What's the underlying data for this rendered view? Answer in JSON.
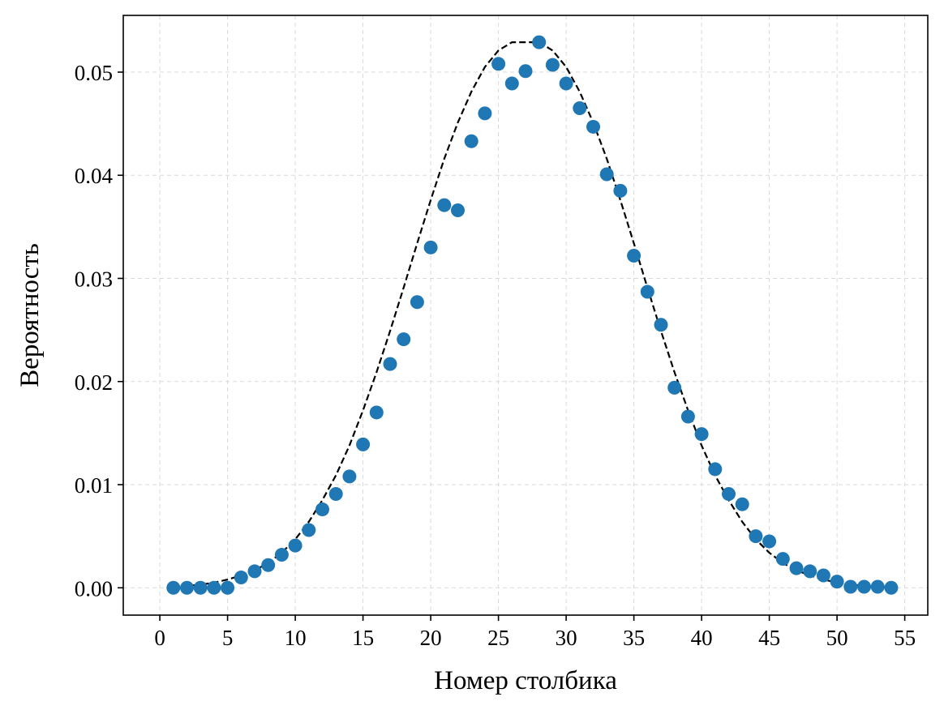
{
  "chart_data": {
    "type": "scatter",
    "title": "",
    "xlabel": "Номер столбика",
    "ylabel": "Вероятность",
    "xlim": [
      -2.7,
      56.7
    ],
    "ylim": [
      -0.00265,
      0.0555
    ],
    "xticks": [
      0,
      5,
      10,
      15,
      20,
      25,
      30,
      35,
      40,
      45,
      50,
      55
    ],
    "xtick_labels": [
      "0",
      "5",
      "10",
      "15",
      "20",
      "25",
      "30",
      "35",
      "40",
      "45",
      "50",
      "55"
    ],
    "yticks": [
      0.0,
      0.01,
      0.02,
      0.03,
      0.04,
      0.05
    ],
    "ytick_labels": [
      "0.00",
      "0.01",
      "0.02",
      "0.03",
      "0.04",
      "0.05"
    ],
    "grid": true,
    "colors": {
      "points": "#1f77b4",
      "curve": "#000000",
      "grid": "#d9d9d9"
    },
    "series": [
      {
        "kind": "scatter",
        "x": [
          1,
          2,
          3,
          4,
          5,
          6,
          7,
          8,
          9,
          10,
          11,
          12,
          13,
          14,
          15,
          16,
          17,
          18,
          19,
          20,
          21,
          22,
          23,
          24,
          25,
          26,
          27,
          28,
          29,
          30,
          31,
          32,
          33,
          34,
          35,
          36,
          37,
          38,
          39,
          40,
          41,
          42,
          43,
          44,
          45,
          46,
          47,
          48,
          49,
          50,
          51,
          52,
          53,
          54
        ],
        "y": [
          0.0,
          0.0,
          0.0,
          0.0,
          0.0,
          0.001,
          0.0016,
          0.0022,
          0.0032,
          0.0041,
          0.0056,
          0.0076,
          0.0091,
          0.0108,
          0.0139,
          0.017,
          0.0217,
          0.0241,
          0.0277,
          0.033,
          0.0371,
          0.0366,
          0.0433,
          0.046,
          0.0508,
          0.0489,
          0.0501,
          0.0529,
          0.0507,
          0.0489,
          0.0465,
          0.0447,
          0.0401,
          0.0385,
          0.0322,
          0.0287,
          0.0255,
          0.0194,
          0.0166,
          0.0149,
          0.0115,
          0.0091,
          0.0081,
          0.005,
          0.0045,
          0.0028,
          0.0019,
          0.0016,
          0.0012,
          0.0006,
          0.0001,
          0.0001,
          0.0001,
          0.0
        ]
      },
      {
        "kind": "line",
        "style": "dashed",
        "x": [
          1,
          2,
          3,
          4,
          5,
          6,
          7,
          8,
          9,
          10,
          11,
          12,
          13,
          14,
          15,
          16,
          17,
          18,
          19,
          20,
          21,
          22,
          23,
          24,
          25,
          26,
          27,
          28,
          29,
          30,
          31,
          32,
          33,
          34,
          35,
          36,
          37,
          38,
          39,
          40,
          41,
          42,
          43,
          44,
          45,
          46,
          47,
          48,
          49,
          50,
          51,
          52,
          53,
          54
        ],
        "y": [
          0.0001,
          0.0002,
          0.0003,
          0.0005,
          0.0008,
          0.0012,
          0.0017,
          0.0024,
          0.0034,
          0.0047,
          0.0064,
          0.0085,
          0.0109,
          0.0138,
          0.0172,
          0.0209,
          0.0249,
          0.0291,
          0.0334,
          0.0376,
          0.0416,
          0.0451,
          0.0481,
          0.0505,
          0.0521,
          0.0529,
          0.0529,
          0.0529,
          0.0521,
          0.0505,
          0.0481,
          0.0451,
          0.0416,
          0.0376,
          0.0334,
          0.0291,
          0.0249,
          0.0209,
          0.0172,
          0.0138,
          0.0109,
          0.0085,
          0.0064,
          0.0047,
          0.0034,
          0.0024,
          0.0017,
          0.0012,
          0.0008,
          0.0005,
          0.0003,
          0.0002,
          0.0001,
          0.0001
        ]
      }
    ]
  }
}
